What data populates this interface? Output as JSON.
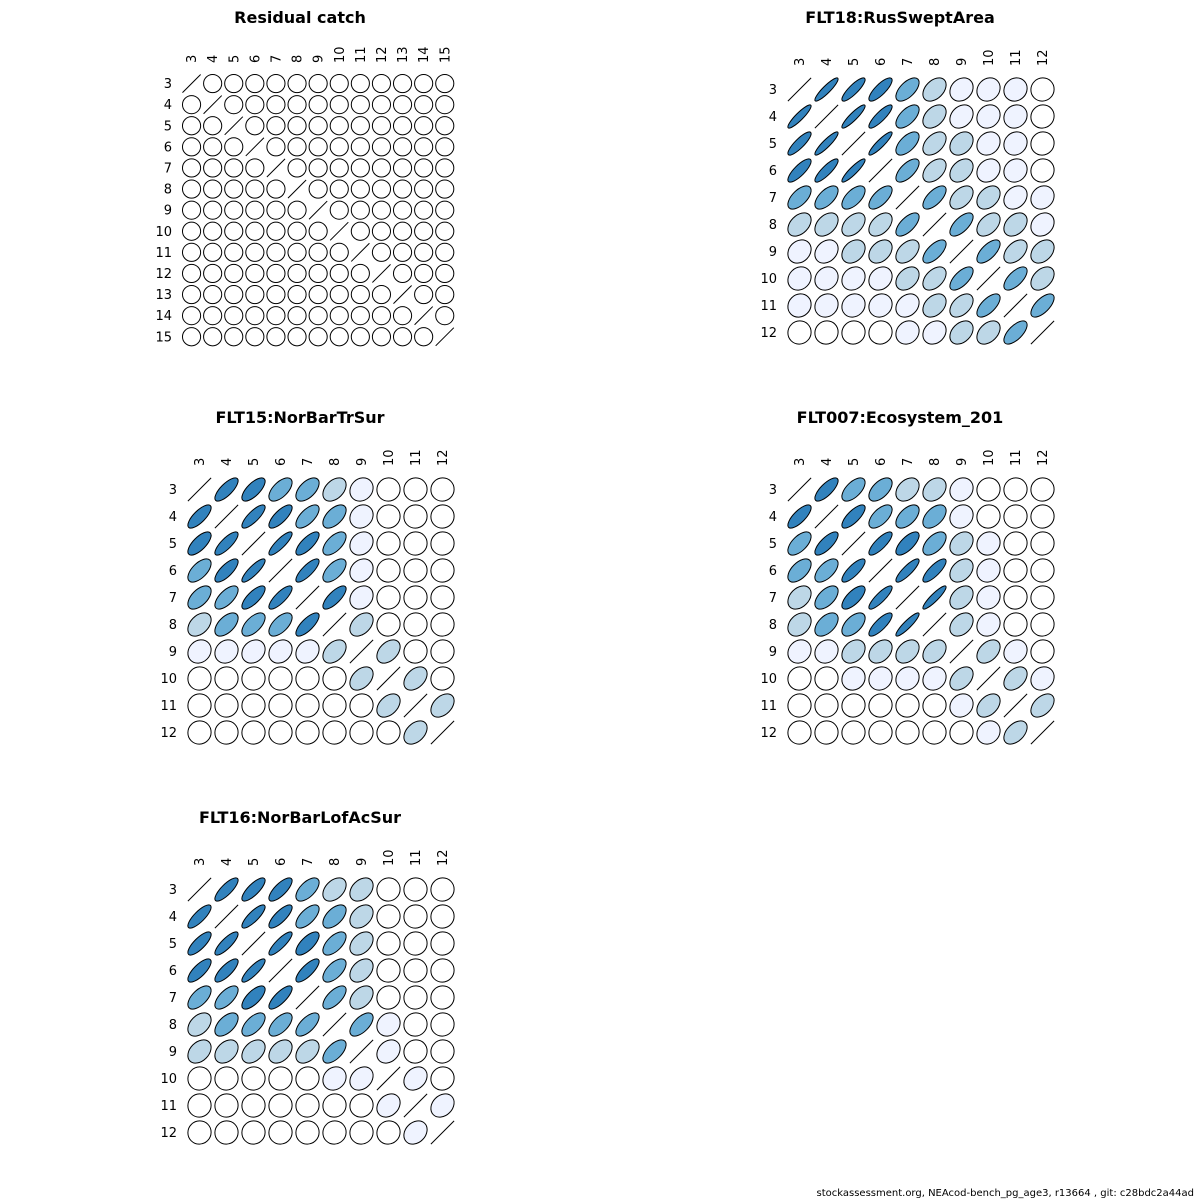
{
  "footer": "stockassessment.org, NEAcod-bench_pg_age3, r13664 , git: c28bdc2a44ad",
  "colors": {
    "c1": "#ffffff",
    "c2": "#eff3ff",
    "c3": "#bdd7e7",
    "c4": "#6baed6",
    "c5": "#3182bd",
    "outline": "#000000"
  },
  "chart_data": [
    {
      "type": "heatmap",
      "title": "Residual catch",
      "labels": [
        "3",
        "4",
        "5",
        "6",
        "7",
        "8",
        "9",
        "10",
        "11",
        "12",
        "13",
        "14",
        "15"
      ],
      "matrix": [
        [
          1,
          0,
          0,
          0,
          0,
          0,
          0,
          0,
          0,
          0,
          0,
          0,
          0
        ],
        [
          0,
          1,
          0,
          0,
          0,
          0,
          0,
          0,
          0,
          0,
          0,
          0,
          0
        ],
        [
          0,
          0,
          1,
          0,
          0,
          0,
          0,
          0,
          0,
          0,
          0,
          0,
          0
        ],
        [
          0,
          0,
          0,
          1,
          0,
          0,
          0,
          0,
          0,
          0,
          0,
          0,
          0
        ],
        [
          0,
          0,
          0,
          0,
          1,
          0,
          0,
          0,
          0,
          0,
          0,
          0,
          0
        ],
        [
          0,
          0,
          0,
          0,
          0,
          1,
          0,
          0,
          0,
          0,
          0,
          0,
          0
        ],
        [
          0,
          0,
          0,
          0,
          0,
          0,
          1,
          0,
          0,
          0,
          0,
          0,
          0
        ],
        [
          0,
          0,
          0,
          0,
          0,
          0,
          0,
          1,
          0,
          0,
          0,
          0,
          0
        ],
        [
          0,
          0,
          0,
          0,
          0,
          0,
          0,
          0,
          1,
          0,
          0,
          0,
          0
        ],
        [
          0,
          0,
          0,
          0,
          0,
          0,
          0,
          0,
          0,
          1,
          0,
          0,
          0
        ],
        [
          0,
          0,
          0,
          0,
          0,
          0,
          0,
          0,
          0,
          0,
          1,
          0,
          0
        ],
        [
          0,
          0,
          0,
          0,
          0,
          0,
          0,
          0,
          0,
          0,
          0,
          1,
          0
        ],
        [
          0,
          0,
          0,
          0,
          0,
          0,
          0,
          0,
          0,
          0,
          0,
          0,
          1
        ]
      ]
    },
    {
      "type": "heatmap",
      "title": "FLT18:RusSweptArea",
      "labels": [
        "3",
        "4",
        "5",
        "6",
        "7",
        "8",
        "9",
        "10",
        "11",
        "12"
      ],
      "matrix": [
        [
          1,
          0.9,
          0.85,
          0.8,
          0.6,
          0.4,
          0.2,
          0.15,
          0.1,
          0.03
        ],
        [
          0.9,
          1,
          0.9,
          0.85,
          0.6,
          0.4,
          0.25,
          0.15,
          0.12,
          0.05
        ],
        [
          0.85,
          0.9,
          1,
          0.9,
          0.6,
          0.45,
          0.3,
          0.18,
          0.12,
          0.05
        ],
        [
          0.8,
          0.85,
          0.9,
          1,
          0.65,
          0.45,
          0.35,
          0.2,
          0.12,
          0.05
        ],
        [
          0.6,
          0.6,
          0.6,
          0.65,
          1,
          0.65,
          0.45,
          0.35,
          0.25,
          0.15
        ],
        [
          0.4,
          0.4,
          0.45,
          0.45,
          0.65,
          1,
          0.65,
          0.45,
          0.35,
          0.2
        ],
        [
          0.2,
          0.25,
          0.3,
          0.35,
          0.45,
          0.65,
          1,
          0.65,
          0.45,
          0.35
        ],
        [
          0.15,
          0.15,
          0.18,
          0.2,
          0.35,
          0.45,
          0.65,
          1,
          0.65,
          0.4
        ],
        [
          0.1,
          0.12,
          0.12,
          0.12,
          0.25,
          0.35,
          0.45,
          0.65,
          1,
          0.65
        ],
        [
          0.03,
          0.05,
          0.05,
          0.05,
          0.15,
          0.2,
          0.35,
          0.4,
          0.65,
          1
        ]
      ]
    },
    {
      "type": "heatmap",
      "title": "FLT15:NorBarTrSur",
      "labels": [
        "3",
        "4",
        "5",
        "6",
        "7",
        "8",
        "9",
        "10",
        "11",
        "12"
      ],
      "matrix": [
        [
          1,
          0.75,
          0.7,
          0.6,
          0.55,
          0.4,
          0.15,
          0.02,
          0.02,
          0.02
        ],
        [
          0.75,
          1,
          0.8,
          0.75,
          0.65,
          0.55,
          0.15,
          0.02,
          0.02,
          0.02
        ],
        [
          0.7,
          0.8,
          1,
          0.85,
          0.75,
          0.6,
          0.2,
          0.03,
          0.02,
          0.02
        ],
        [
          0.6,
          0.75,
          0.85,
          1,
          0.8,
          0.6,
          0.2,
          0.03,
          0.02,
          0.02
        ],
        [
          0.55,
          0.65,
          0.75,
          0.8,
          1,
          0.75,
          0.2,
          0.03,
          0.02,
          0.02
        ],
        [
          0.4,
          0.55,
          0.6,
          0.6,
          0.75,
          1,
          0.4,
          0.05,
          0.03,
          0.02
        ],
        [
          0.15,
          0.15,
          0.2,
          0.2,
          0.2,
          0.4,
          1,
          0.4,
          0.05,
          0.03
        ],
        [
          0.02,
          0.02,
          0.03,
          0.03,
          0.03,
          0.05,
          0.4,
          1,
          0.4,
          0.05
        ],
        [
          0.02,
          0.02,
          0.02,
          0.02,
          0.02,
          0.03,
          0.05,
          0.4,
          1,
          0.4
        ],
        [
          0.02,
          0.02,
          0.02,
          0.02,
          0.02,
          0.02,
          0.03,
          0.05,
          0.4,
          1
        ]
      ]
    },
    {
      "type": "heatmap",
      "title": "FLT007:Ecosystem_201",
      "labels": [
        "3",
        "4",
        "5",
        "6",
        "7",
        "8",
        "9",
        "10",
        "11",
        "12"
      ],
      "matrix": [
        [
          1,
          0.75,
          0.6,
          0.55,
          0.35,
          0.3,
          0.15,
          0.05,
          0.03,
          0.02
        ],
        [
          0.75,
          1,
          0.75,
          0.6,
          0.55,
          0.5,
          0.15,
          0.05,
          0.03,
          0.02
        ],
        [
          0.6,
          0.75,
          1,
          0.8,
          0.7,
          0.55,
          0.3,
          0.1,
          0.05,
          0.03
        ],
        [
          0.55,
          0.6,
          0.8,
          1,
          0.85,
          0.8,
          0.35,
          0.12,
          0.05,
          0.03
        ],
        [
          0.35,
          0.55,
          0.7,
          0.85,
          1,
          0.9,
          0.35,
          0.12,
          0.05,
          0.03
        ],
        [
          0.3,
          0.5,
          0.55,
          0.8,
          0.9,
          1,
          0.35,
          0.15,
          0.05,
          0.03
        ],
        [
          0.15,
          0.15,
          0.3,
          0.35,
          0.35,
          0.35,
          1,
          0.4,
          0.15,
          0.05
        ],
        [
          0.05,
          0.05,
          0.1,
          0.12,
          0.12,
          0.15,
          0.4,
          1,
          0.4,
          0.15
        ],
        [
          0.03,
          0.03,
          0.05,
          0.05,
          0.05,
          0.05,
          0.15,
          0.4,
          1,
          0.45
        ],
        [
          0.02,
          0.02,
          0.03,
          0.03,
          0.03,
          0.03,
          0.05,
          0.15,
          0.45,
          1
        ]
      ]
    },
    {
      "type": "heatmap",
      "title": "FLT16:NorBarLofAcSur",
      "labels": [
        "3",
        "4",
        "5",
        "6",
        "7",
        "8",
        "9",
        "10",
        "11",
        "12"
      ],
      "matrix": [
        [
          1,
          0.8,
          0.78,
          0.75,
          0.6,
          0.4,
          0.35,
          0.03,
          0.02,
          0.02
        ],
        [
          0.8,
          1,
          0.82,
          0.78,
          0.65,
          0.55,
          0.35,
          0.03,
          0.02,
          0.02
        ],
        [
          0.78,
          0.82,
          1,
          0.85,
          0.7,
          0.6,
          0.38,
          0.03,
          0.02,
          0.02
        ],
        [
          0.75,
          0.78,
          0.85,
          1,
          0.78,
          0.6,
          0.38,
          0.04,
          0.02,
          0.02
        ],
        [
          0.6,
          0.65,
          0.7,
          0.78,
          1,
          0.65,
          0.4,
          0.05,
          0.03,
          0.02
        ],
        [
          0.4,
          0.55,
          0.6,
          0.6,
          0.65,
          1,
          0.6,
          0.15,
          0.04,
          0.03
        ],
        [
          0.35,
          0.35,
          0.38,
          0.38,
          0.4,
          0.6,
          1,
          0.25,
          0.05,
          0.03
        ],
        [
          0.03,
          0.03,
          0.03,
          0.04,
          0.05,
          0.15,
          0.25,
          1,
          0.25,
          0.05
        ],
        [
          0.02,
          0.02,
          0.02,
          0.02,
          0.03,
          0.04,
          0.05,
          0.25,
          1,
          0.25
        ],
        [
          0.02,
          0.02,
          0.02,
          0.02,
          0.02,
          0.03,
          0.03,
          0.05,
          0.25,
          1
        ]
      ]
    }
  ]
}
